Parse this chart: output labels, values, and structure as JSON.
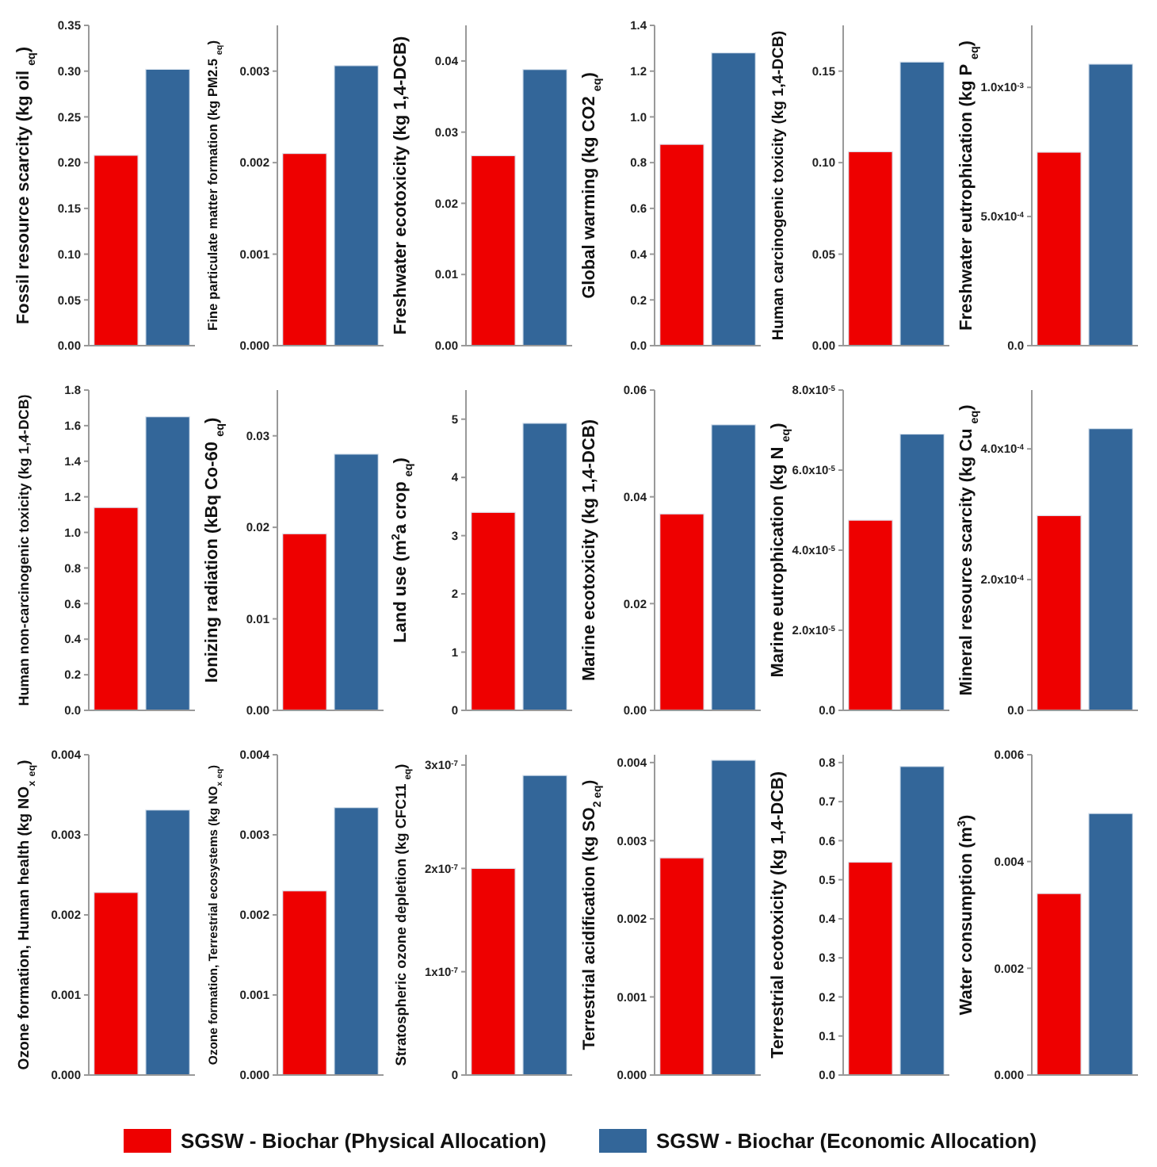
{
  "chart_data": [
    {
      "type": "bar",
      "ylabel": "Fossil resource scarcity (kg oil $_{eq}$)",
      "categories": [
        null
      ],
      "series": [
        {
          "name": "SGSW - Biochar (Physical Allocation)",
          "color": "#ee0000",
          "values": [
            0.208
          ]
        },
        {
          "name": "SGSW - Biochar (Economic Allocation)",
          "color": "#336699",
          "values": [
            0.302
          ]
        }
      ],
      "ylim": [
        0,
        0.35
      ],
      "yticks": [
        {
          "value": 0,
          "label": "0.00"
        },
        0.05,
        {
          "value": 0.1,
          "label": "0.10"
        },
        0.15,
        {
          "value": 0.2,
          "label": "0.20"
        },
        0.25,
        {
          "value": 0.3,
          "label": "0.30"
        },
        0.35
      ],
      "legend": "bottom"
    },
    {
      "type": "bar",
      "ylabel": "Fine particulate matter formation (kg PM2.5 $_{eq}$)",
      "categories": [
        null
      ],
      "series": [
        {
          "color": "#ee0000",
          "values": [
            0.0021
          ]
        },
        {
          "color": "#336699",
          "values": [
            0.00306
          ]
        }
      ],
      "ylim": [
        0,
        0.0035
      ],
      "yticks": [
        {
          "value": 0,
          "label": "0.000"
        },
        0.001,
        0.002,
        0.003
      ]
    },
    {
      "type": "bar",
      "ylabel": "Freshwater ecotoxicity (kg 1,4-DCB)",
      "categories": [
        null
      ],
      "series": [
        {
          "color": "#ee0000",
          "values": [
            0.0267
          ]
        },
        {
          "color": "#336699",
          "values": [
            0.0388
          ]
        }
      ],
      "ylim": [
        0,
        0.045
      ],
      "yticks": [
        {
          "value": 0,
          "label": "0.00"
        },
        0.01,
        0.02,
        0.03,
        0.04
      ]
    },
    {
      "type": "bar",
      "ylabel": "Global warming (kg CO2 $_{eq}$)",
      "categories": [
        null
      ],
      "series": [
        {
          "color": "#ee0000",
          "values": [
            0.88
          ]
        },
        {
          "color": "#336699",
          "values": [
            1.28
          ]
        }
      ],
      "ylim": [
        0,
        1.4
      ],
      "yticks": [
        {
          "value": 0,
          "label": "0.0"
        },
        0.2,
        0.4,
        0.6,
        0.8,
        {
          "value": 1,
          "label": "1.0"
        },
        1.2,
        1.4
      ]
    },
    {
      "type": "bar",
      "ylabel": "Human carcinogenic toxicity (kg 1,4-DCB)",
      "categories": [
        null
      ],
      "series": [
        {
          "color": "#ee0000",
          "values": [
            0.106
          ]
        },
        {
          "color": "#336699",
          "values": [
            0.155
          ]
        }
      ],
      "ylim": [
        0,
        0.175
      ],
      "yticks": [
        {
          "value": 0,
          "label": "0.00"
        },
        0.05,
        {
          "value": 0.1,
          "label": "0.10"
        },
        0.15
      ]
    },
    {
      "type": "bar",
      "ylabel": "Freshwater eutrophication (kg P $_{eq}$)",
      "categories": [
        null
      ],
      "series": [
        {
          "color": "#ee0000",
          "values": [
            0.000749
          ]
        },
        {
          "color": "#336699",
          "values": [
            0.00109
          ]
        }
      ],
      "ylim": [
        0,
        0.00124
      ],
      "yticks": [
        {
          "value": 0,
          "label": "0.0"
        },
        {
          "value": 0.0005,
          "label": "5.0x10$^{-4}$"
        },
        {
          "value": 0.001,
          "label": "1.0x10$^{-3}$"
        }
      ]
    },
    {
      "type": "bar",
      "ylabel": "Human non-carcinogenic toxicity (kg 1,4-DCB)",
      "categories": [
        null
      ],
      "series": [
        {
          "color": "#ee0000",
          "values": [
            1.14
          ]
        },
        {
          "color": "#336699",
          "values": [
            1.65
          ]
        }
      ],
      "ylim": [
        0,
        1.8
      ],
      "yticks": [
        {
          "value": 0,
          "label": "0.0"
        },
        0.2,
        0.4,
        0.6,
        0.8,
        {
          "value": 1,
          "label": "1.0"
        },
        1.2,
        1.4,
        1.6,
        1.8
      ]
    },
    {
      "type": "bar",
      "ylabel": "Ionizing radiation (kBq Co-60 $_{eq}$)",
      "categories": [
        null
      ],
      "series": [
        {
          "color": "#ee0000",
          "values": [
            0.0193
          ]
        },
        {
          "color": "#336699",
          "values": [
            0.028
          ]
        }
      ],
      "ylim": [
        0,
        0.035
      ],
      "yticks": [
        {
          "value": 0,
          "label": "0.00"
        },
        0.01,
        0.02,
        0.03
      ]
    },
    {
      "type": "bar",
      "ylabel": "Land use (m$^{2}$a crop $_{eq}$)",
      "categories": [
        null
      ],
      "series": [
        {
          "color": "#ee0000",
          "values": [
            3.4
          ]
        },
        {
          "color": "#336699",
          "values": [
            4.93
          ]
        }
      ],
      "ylim": [
        0,
        5.5
      ],
      "yticks": [
        0,
        1,
        2,
        3,
        4,
        5
      ]
    },
    {
      "type": "bar",
      "ylabel": "Marine ecotoxicity (kg 1,4-DCB)",
      "categories": [
        null
      ],
      "series": [
        {
          "color": "#ee0000",
          "values": [
            0.0368
          ]
        },
        {
          "color": "#336699",
          "values": [
            0.0535
          ]
        }
      ],
      "ylim": [
        0,
        0.06
      ],
      "yticks": [
        {
          "value": 0,
          "label": "0.00"
        },
        0.02,
        0.04,
        0.06
      ]
    },
    {
      "type": "bar",
      "ylabel": "Marine eutrophication (kg N $_{eq}$)",
      "categories": [
        null
      ],
      "series": [
        {
          "color": "#ee0000",
          "values": [
            4.75e-05
          ]
        },
        {
          "color": "#336699",
          "values": [
            6.9e-05
          ]
        }
      ],
      "ylim": [
        0,
        8e-05
      ],
      "yticks": [
        {
          "value": 0,
          "label": "0.0"
        },
        {
          "value": 2e-05,
          "label": "2.0x10$^{-5}$"
        },
        {
          "value": 4e-05,
          "label": "4.0x10$^{-5}$"
        },
        {
          "value": 6e-05,
          "label": "6.0x10$^{-5}$"
        },
        {
          "value": 8e-05,
          "label": "8.0x10$^{-5}$"
        }
      ]
    },
    {
      "type": "bar",
      "ylabel": "Mineral resource scarcity (kg Cu $_{eq}$)",
      "categories": [
        null
      ],
      "series": [
        {
          "color": "#ee0000",
          "values": [
            0.000298
          ]
        },
        {
          "color": "#336699",
          "values": [
            0.000431
          ]
        }
      ],
      "ylim": [
        0,
        0.00049
      ],
      "yticks": [
        {
          "value": 0,
          "label": "0.0"
        },
        {
          "value": 0.0002,
          "label": "2.0x10$^{-4}$"
        },
        {
          "value": 0.0004,
          "label": "4.0x10$^{-4}$"
        }
      ]
    },
    {
      "type": "bar",
      "ylabel": "Ozone formation, Human health (kg NO$_{x}$ $_{eq}$)",
      "categories": [
        null
      ],
      "series": [
        {
          "color": "#ee0000",
          "values": [
            0.00228
          ]
        },
        {
          "color": "#336699",
          "values": [
            0.00331
          ]
        }
      ],
      "ylim": [
        0,
        0.004
      ],
      "yticks": [
        {
          "value": 0,
          "label": "0.000"
        },
        0.001,
        0.002,
        0.003,
        0.004
      ]
    },
    {
      "type": "bar",
      "ylabel": "Ozone formation, Terrestrial ecosystems (kg NO$_{x}$ $_{eq}$)",
      "categories": [
        null
      ],
      "series": [
        {
          "color": "#ee0000",
          "values": [
            0.0023
          ]
        },
        {
          "color": "#336699",
          "values": [
            0.00334
          ]
        }
      ],
      "ylim": [
        0,
        0.004
      ],
      "yticks": [
        {
          "value": 0,
          "label": "0.000"
        },
        0.001,
        0.002,
        0.003,
        0.004
      ]
    },
    {
      "type": "bar",
      "ylabel": "Stratospheric ozone depletion (kg CFC11 $_{eq}$)",
      "categories": [
        null
      ],
      "series": [
        {
          "color": "#ee0000",
          "values": [
            2e-07
          ]
        },
        {
          "color": "#336699",
          "values": [
            2.9e-07
          ]
        }
      ],
      "ylim": [
        0,
        3.1e-07
      ],
      "yticks": [
        0,
        {
          "value": 1e-07,
          "label": "1x10$^{-7}$"
        },
        {
          "value": 2e-07,
          "label": "2x10$^{-7}$"
        },
        {
          "value": 3e-07,
          "label": "3x10$^{-7}$"
        }
      ]
    },
    {
      "type": "bar",
      "ylabel": "Terrestrial acidification (kg SO$_{2 eq}$)",
      "categories": [
        null
      ],
      "series": [
        {
          "color": "#ee0000",
          "values": [
            0.00278
          ]
        },
        {
          "color": "#336699",
          "values": [
            0.00403
          ]
        }
      ],
      "ylim": [
        0,
        0.0041
      ],
      "yticks": [
        {
          "value": 0,
          "label": "0.000"
        },
        0.001,
        0.002,
        0.003,
        0.004
      ]
    },
    {
      "type": "bar",
      "ylabel": "Terrestrial ecotoxicity (kg 1,4-DCB)",
      "categories": [
        null
      ],
      "series": [
        {
          "color": "#ee0000",
          "values": [
            0.545
          ]
        },
        {
          "color": "#336699",
          "values": [
            0.79
          ]
        }
      ],
      "ylim": [
        0,
        0.82
      ],
      "yticks": [
        {
          "value": 0,
          "label": "0.0"
        },
        0.1,
        0.2,
        0.3,
        0.4,
        0.5,
        0.6,
        0.7,
        0.8
      ]
    },
    {
      "type": "bar",
      "ylabel": "Water consumption (m$^{3}$)",
      "categories": [
        null
      ],
      "series": [
        {
          "color": "#ee0000",
          "values": [
            0.0034
          ]
        },
        {
          "color": "#336699",
          "values": [
            0.0049
          ]
        }
      ],
      "ylim": [
        0,
        0.006
      ],
      "yticks": [
        {
          "value": 0,
          "label": "0.000"
        },
        0.002,
        0.004,
        0.006
      ]
    }
  ]
}
